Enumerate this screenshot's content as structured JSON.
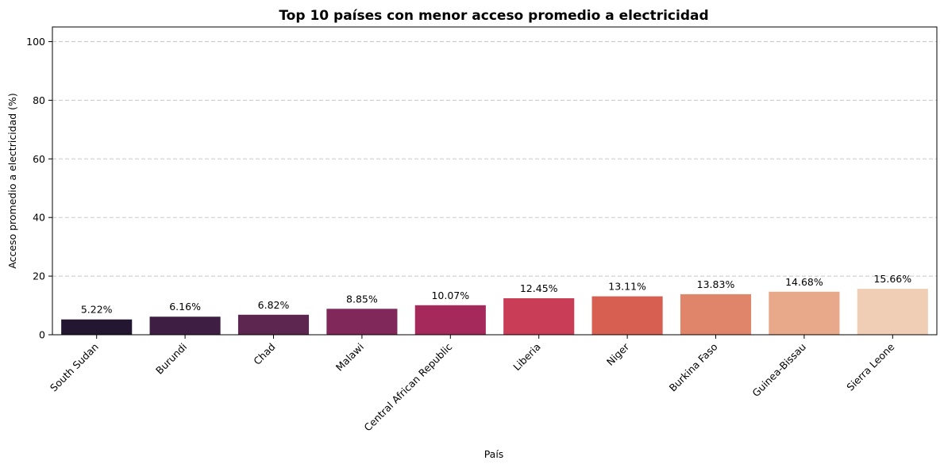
{
  "chart_data": {
    "type": "bar",
    "title": "Top 10 países con menor acceso promedio a electricidad",
    "xlabel": "País",
    "ylabel": "Acceso promedio a electricidad (%)",
    "categories": [
      "South Sudan",
      "Burundi",
      "Chad",
      "Malawi",
      "Central African Republic",
      "Liberia",
      "Niger",
      "Burkina Faso",
      "Guinea-Bissau",
      "Sierra Leone"
    ],
    "values": [
      5.22,
      6.16,
      6.82,
      8.85,
      10.07,
      12.45,
      13.11,
      13.83,
      14.68,
      15.66
    ],
    "data_labels": [
      "5.22%",
      "6.16%",
      "6.82%",
      "8.85%",
      "10.07%",
      "12.45%",
      "13.11%",
      "13.83%",
      "14.68%",
      "15.66%"
    ],
    "colors": [
      "#221631",
      "#3e1f43",
      "#5d2651",
      "#80285a",
      "#a6295b",
      "#c93e56",
      "#d75f52",
      "#e0856a",
      "#e8a98a",
      "#f0cdb5"
    ],
    "yticks": [
      0,
      20,
      40,
      60,
      80,
      100
    ],
    "ylim": [
      0,
      105
    ],
    "grid": "y-dashed",
    "legend": "none"
  }
}
